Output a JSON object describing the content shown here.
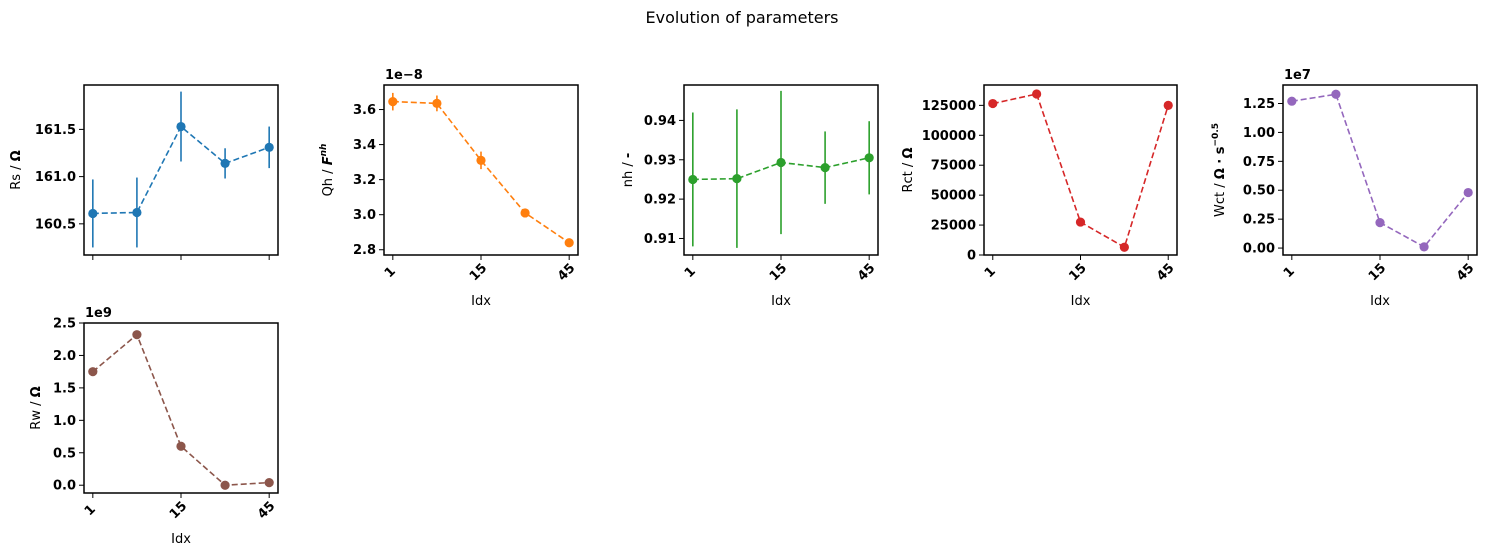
{
  "figure": {
    "title": "Evolution of parameters"
  },
  "chart_data": [
    {
      "type": "line",
      "name": "Rs",
      "ylabel": "Rs / Ω",
      "xlabel": "",
      "color": "#1f77b4",
      "x": [
        0,
        1,
        2,
        3,
        4
      ],
      "y": [
        160.61,
        160.62,
        161.53,
        161.14,
        161.31
      ],
      "yerr": [
        0.36,
        0.37,
        0.37,
        0.16,
        0.22
      ],
      "ylim": [
        160.17,
        161.97
      ],
      "yticks": [
        160.5,
        161.0,
        161.5
      ],
      "ytick_labels": [
        "160.5",
        "161.0",
        "161.5"
      ],
      "xticks": [
        0,
        2,
        4
      ],
      "xtick_labels": [],
      "offset_text": ""
    },
    {
      "type": "line",
      "name": "Qh",
      "ylabel": "Qh / F^nh",
      "xlabel": "Idx",
      "color": "#ff7f0e",
      "x": [
        0,
        1,
        2,
        3,
        4
      ],
      "y": [
        3.645,
        3.635,
        3.31,
        3.01,
        2.84
      ],
      "yerr": [
        0.05,
        0.045,
        0.05,
        0.0,
        0.0
      ],
      "ylim": [
        2.77,
        3.74
      ],
      "yticks": [
        2.8,
        3.0,
        3.2,
        3.4,
        3.6
      ],
      "ytick_labels": [
        "2.8",
        "3.0",
        "3.2",
        "3.4",
        "3.6"
      ],
      "xticks": [
        0,
        2,
        4
      ],
      "xtick_labels": [
        "1",
        "15",
        "45"
      ],
      "offset_text": "1e−8"
    },
    {
      "type": "line",
      "name": "nh",
      "ylabel": "nh / -",
      "xlabel": "Idx",
      "color": "#2ca02c",
      "x": [
        0,
        1,
        2,
        3,
        4
      ],
      "y": [
        0.925,
        0.9252,
        0.9293,
        0.928,
        0.9305
      ],
      "yerr": [
        0.017,
        0.0176,
        0.0182,
        0.0092,
        0.0093
      ],
      "ylim": [
        0.9058,
        0.949
      ],
      "yticks": [
        0.91,
        0.92,
        0.93,
        0.94
      ],
      "ytick_labels": [
        "0.91",
        "0.92",
        "0.93",
        "0.94"
      ],
      "xticks": [
        0,
        2,
        4
      ],
      "xtick_labels": [
        "1",
        "15",
        "45"
      ],
      "offset_text": ""
    },
    {
      "type": "line",
      "name": "Rct",
      "ylabel": "Rct / Ω",
      "xlabel": "Idx",
      "color": "#d62728",
      "x": [
        0,
        1,
        2,
        3,
        4
      ],
      "y": [
        126500,
        134500,
        27500,
        6500,
        125000
      ],
      "yerr": [
        0,
        0,
        0,
        0,
        0
      ],
      "ylim": [
        0,
        142000
      ],
      "yticks": [
        0,
        25000,
        50000,
        75000,
        100000,
        125000
      ],
      "ytick_labels": [
        "0",
        "25000",
        "50000",
        "75000",
        "100000",
        "125000"
      ],
      "xticks": [
        0,
        2,
        4
      ],
      "xtick_labels": [
        "1",
        "15",
        "45"
      ],
      "offset_text": ""
    },
    {
      "type": "line",
      "name": "Wct",
      "ylabel": "Wct / Ω · s^−0.5",
      "xlabel": "Idx",
      "color": "#9467bd",
      "x": [
        0,
        1,
        2,
        3,
        4
      ],
      "y": [
        1.27,
        1.33,
        0.22,
        0.01,
        0.48
      ],
      "yerr": [
        0,
        0,
        0,
        0,
        0
      ],
      "ylim": [
        -0.06,
        1.41
      ],
      "yticks": [
        0.0,
        0.25,
        0.5,
        0.75,
        1.0,
        1.25
      ],
      "ytick_labels": [
        "0.00",
        "0.25",
        "0.50",
        "0.75",
        "1.00",
        "1.25"
      ],
      "xticks": [
        0,
        2,
        4
      ],
      "xtick_labels": [
        "1",
        "15",
        "45"
      ],
      "offset_text": "1e7"
    },
    {
      "type": "line",
      "name": "Rw",
      "ylabel": "Rw / Ω",
      "xlabel": "Idx",
      "color": "#8c564b",
      "x": [
        0,
        1,
        2,
        3,
        4
      ],
      "y": [
        1.75,
        2.32,
        0.6,
        0.0,
        0.04
      ],
      "yerr": [
        0,
        0,
        0,
        0,
        0
      ],
      "ylim": [
        -0.12,
        2.5
      ],
      "yticks": [
        0.0,
        0.5,
        1.0,
        1.5,
        2.0,
        2.5
      ],
      "ytick_labels": [
        "0.0",
        "0.5",
        "1.0",
        "1.5",
        "2.0",
        "2.5"
      ],
      "xticks": [
        0,
        2,
        4
      ],
      "xtick_labels": [
        "1",
        "15",
        "45"
      ],
      "offset_text": "1e9"
    }
  ]
}
